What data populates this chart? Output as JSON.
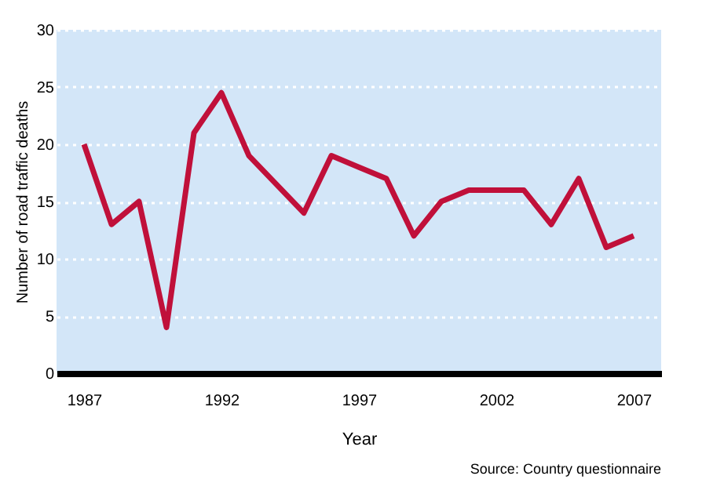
{
  "chart_data": {
    "type": "line",
    "xlabel": "Year",
    "ylabel": "Number of road traffic deaths",
    "x": [
      1987,
      1988,
      1989,
      1990,
      1991,
      1992,
      1993,
      1994,
      1995,
      1996,
      1997,
      1998,
      1999,
      2000,
      2001,
      2002,
      2003,
      2004,
      2005,
      2006,
      2007
    ],
    "series": [
      {
        "color": "#c0103a",
        "values": [
          20,
          13,
          15,
          4,
          21,
          24.5,
          19,
          16.5,
          14,
          19,
          18,
          17,
          12,
          15,
          16,
          16,
          16,
          13,
          17,
          11,
          12
        ]
      }
    ],
    "xlim": [
      1986,
      2008
    ],
    "xticks": [
      1987,
      1992,
      1997,
      2002,
      2007
    ],
    "ylim": [
      0,
      30
    ],
    "yticks": [
      0,
      5,
      10,
      15,
      20,
      25,
      30
    ],
    "grid": "y",
    "marker": "none",
    "line_style": "solid",
    "legend": false,
    "annotations": [
      "Source: Country questionnaire"
    ]
  }
}
